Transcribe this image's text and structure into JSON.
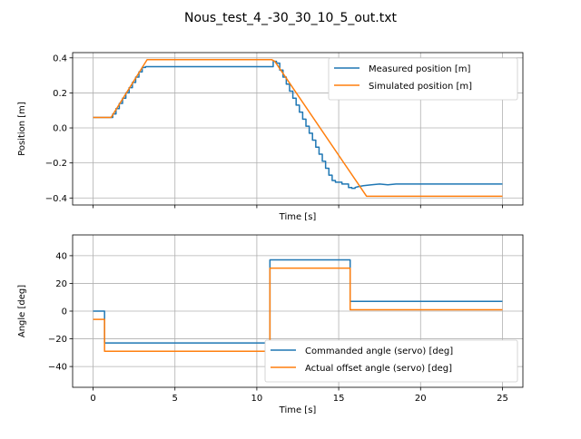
{
  "figure": {
    "title": "Nous_test_4_-30_30_10_5_out.txt"
  },
  "colors": {
    "series1": "#1f77b4",
    "series2": "#ff7f0e",
    "grid": "#b0b0b0"
  },
  "chart_data": [
    {
      "type": "line",
      "xlabel": "Time [s]",
      "ylabel": "Position [m]",
      "xlim": [
        -1.25,
        26.25
      ],
      "ylim": [
        -0.44,
        0.43
      ],
      "xticks": [
        0,
        5,
        10,
        15,
        20,
        25
      ],
      "xticklabels": [
        "",
        "",
        "",
        "",
        "",
        ""
      ],
      "yticks": [
        -0.4,
        -0.2,
        0.0,
        0.2,
        0.4
      ],
      "yticklabels": [
        "−0.4",
        "−0.2",
        "0.0",
        "0.2",
        "0.4"
      ],
      "grid": true,
      "legend": "upper right",
      "series": [
        {
          "name": "Measured position [m]",
          "color": "#1f77b4",
          "x": [
            0,
            1.0,
            1.2,
            1.2,
            1.4,
            1.4,
            1.6,
            1.6,
            1.8,
            1.8,
            2.0,
            2.0,
            2.2,
            2.2,
            2.4,
            2.4,
            2.6,
            2.6,
            2.8,
            2.8,
            3.0,
            3.0,
            3.2,
            3.2,
            3.4,
            3.4,
            11.0,
            11.0,
            11.2,
            11.2,
            11.4,
            11.4,
            11.6,
            11.6,
            11.8,
            11.8,
            12.0,
            12.0,
            12.2,
            12.2,
            12.4,
            12.4,
            12.6,
            12.6,
            12.8,
            12.8,
            13.0,
            13.0,
            13.2,
            13.2,
            13.4,
            13.4,
            13.6,
            13.6,
            13.8,
            13.8,
            14.0,
            14.0,
            14.2,
            14.2,
            14.4,
            14.4,
            14.6,
            14.6,
            14.8,
            14.8,
            15.0,
            15.0,
            15.2,
            15.2,
            15.4,
            15.4,
            15.6,
            15.6,
            15.8,
            15.8,
            16.0,
            16.0,
            16.2,
            16.5,
            17.0,
            17.5,
            18.0,
            18.5,
            19.0,
            20.0,
            25.0
          ],
          "y": [
            0.06,
            0.06,
            0.06,
            0.08,
            0.08,
            0.11,
            0.11,
            0.14,
            0.14,
            0.17,
            0.17,
            0.2,
            0.2,
            0.23,
            0.23,
            0.26,
            0.26,
            0.29,
            0.29,
            0.32,
            0.32,
            0.345,
            0.345,
            0.35,
            0.35,
            0.35,
            0.35,
            0.38,
            0.38,
            0.37,
            0.37,
            0.33,
            0.33,
            0.29,
            0.29,
            0.25,
            0.25,
            0.21,
            0.21,
            0.17,
            0.17,
            0.13,
            0.13,
            0.09,
            0.09,
            0.05,
            0.05,
            0.01,
            0.01,
            -0.03,
            -0.03,
            -0.07,
            -0.07,
            -0.11,
            -0.11,
            -0.15,
            -0.15,
            -0.19,
            -0.19,
            -0.23,
            -0.23,
            -0.27,
            -0.27,
            -0.3,
            -0.3,
            -0.31,
            -0.31,
            -0.31,
            -0.31,
            -0.32,
            -0.32,
            -0.32,
            -0.32,
            -0.34,
            -0.34,
            -0.345,
            -0.345,
            -0.34,
            -0.335,
            -0.33,
            -0.325,
            -0.32,
            -0.325,
            -0.32,
            -0.32,
            -0.32,
            -0.32
          ]
        },
        {
          "name": "Simulated position [m]",
          "color": "#ff7f0e",
          "x": [
            0,
            1.1,
            3.3,
            10.9,
            11.1,
            16.7,
            25.0
          ],
          "y": [
            0.06,
            0.06,
            0.39,
            0.39,
            0.38,
            -0.39,
            -0.39
          ]
        }
      ]
    },
    {
      "type": "line",
      "xlabel": "Time [s]",
      "ylabel": "Angle [deg]",
      "xlim": [
        -1.25,
        26.25
      ],
      "ylim": [
        -55,
        55
      ],
      "xticks": [
        0,
        5,
        10,
        15,
        20,
        25
      ],
      "xticklabels": [
        "0",
        "5",
        "10",
        "15",
        "20",
        "25"
      ],
      "yticks": [
        -40,
        -20,
        0,
        20,
        40
      ],
      "yticklabels": [
        "−40",
        "−20",
        "0",
        "20",
        "40"
      ],
      "grid": true,
      "legend": "lower right",
      "series": [
        {
          "name": "Commanded angle (servo) [deg]",
          "color": "#1f77b4",
          "x": [
            0,
            0.7,
            0.7,
            10.8,
            10.8,
            15.7,
            15.7,
            25.0
          ],
          "y": [
            0,
            0,
            -23,
            -23,
            37,
            37,
            7,
            7
          ]
        },
        {
          "name": "Actual offset angle (servo) [deg]",
          "color": "#ff7f0e",
          "x": [
            0,
            0.7,
            0.7,
            10.8,
            10.8,
            15.7,
            15.7,
            25.0
          ],
          "y": [
            -6,
            -6,
            -29,
            -29,
            31,
            31,
            1,
            1
          ]
        }
      ]
    }
  ]
}
